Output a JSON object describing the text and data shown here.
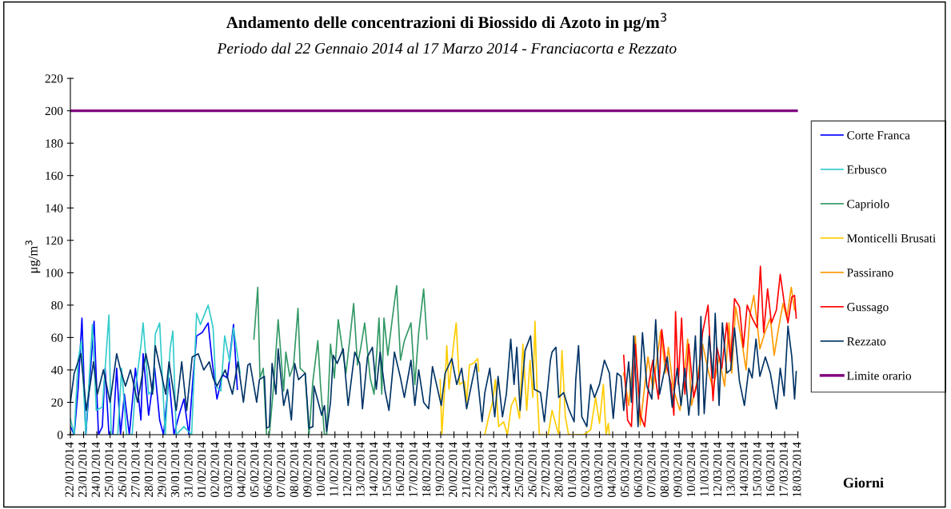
{
  "chart_data": {
    "type": "line",
    "title": "Andamento delle concentrazioni di Biossido di Azoto in μg/m$^{3}$",
    "subtitle": "Periodo dal 22 Gennaio 2014 al 17 Marzo 2014 - Franciacorta e Rezzato",
    "ylabel": "μg/m$^{3}$",
    "xlabel": "Giorni",
    "xlim": [
      "2014-01-22",
      "2014-03-18"
    ],
    "xticks": [
      {
        "value": "2014-01-22",
        "label": "22/01/2014"
      },
      {
        "value": "2014-01-23",
        "label": "23/01/2014"
      },
      {
        "value": "2014-01-24",
        "label": "24/01/2014"
      },
      {
        "value": "2014-01-25",
        "label": "25/01/2014"
      },
      {
        "value": "2014-01-26",
        "label": "26/01/2014"
      },
      {
        "value": "2014-01-27",
        "label": "27/01/2014"
      },
      {
        "value": "2014-01-28",
        "label": "28/01/2014"
      },
      {
        "value": "2014-01-29",
        "label": "29/01/2014"
      },
      {
        "value": "2014-01-30",
        "label": "30/01/2014"
      },
      {
        "value": "2014-01-31",
        "label": "31/01/2014"
      },
      {
        "value": "2014-02-01",
        "label": "01/02/2014"
      },
      {
        "value": "2014-02-02",
        "label": "02/02/2014"
      },
      {
        "value": "2014-02-03",
        "label": "03/02/2014"
      },
      {
        "value": "2014-02-04",
        "label": "04/02/2014"
      },
      {
        "value": "2014-02-05",
        "label": "05/02/2014"
      },
      {
        "value": "2014-02-06",
        "label": "06/02/2014"
      },
      {
        "value": "2014-02-07",
        "label": "07/02/2014"
      },
      {
        "value": "2014-02-08",
        "label": "08/02/2014"
      },
      {
        "value": "2014-02-09",
        "label": "09/02/2014"
      },
      {
        "value": "2014-02-10",
        "label": "10/02/2014"
      },
      {
        "value": "2014-02-11",
        "label": "11/02/2014"
      },
      {
        "value": "2014-02-12",
        "label": "12/02/2014"
      },
      {
        "value": "2014-02-13",
        "label": "13/02/2014"
      },
      {
        "value": "2014-02-14",
        "label": "14/02/2014"
      },
      {
        "value": "2014-02-15",
        "label": "15/02/2014"
      },
      {
        "value": "2014-02-16",
        "label": "16/02/2014"
      },
      {
        "value": "2014-02-17",
        "label": "17/02/2014"
      },
      {
        "value": "2014-02-18",
        "label": "18/02/2014"
      },
      {
        "value": "2014-02-19",
        "label": "19/02/2014"
      },
      {
        "value": "2014-02-20",
        "label": "20/02/2014"
      },
      {
        "value": "2014-02-21",
        "label": "21/02/2014"
      },
      {
        "value": "2014-02-22",
        "label": "22/02/2014"
      },
      {
        "value": "2014-02-23",
        "label": "23/02/2014"
      },
      {
        "value": "2014-02-24",
        "label": "24/02/2014"
      },
      {
        "value": "2014-02-25",
        "label": "25/02/2014"
      },
      {
        "value": "2014-02-26",
        "label": "26/02/2014"
      },
      {
        "value": "2014-02-27",
        "label": "27/02/2014"
      },
      {
        "value": "2014-02-28",
        "label": "28/02/2014"
      },
      {
        "value": "2014-03-01",
        "label": "01/03/2014"
      },
      {
        "value": "2014-03-02",
        "label": "02/03/2014"
      },
      {
        "value": "2014-03-03",
        "label": "03/03/2014"
      },
      {
        "value": "2014-03-04",
        "label": "04/03/2014"
      },
      {
        "value": "2014-03-05",
        "label": "05/03/2014"
      },
      {
        "value": "2014-03-06",
        "label": "06/03/2014"
      },
      {
        "value": "2014-03-07",
        "label": "07/03/2014"
      },
      {
        "value": "2014-03-08",
        "label": "08/03/2014"
      },
      {
        "value": "2014-03-09",
        "label": "09/03/2014"
      },
      {
        "value": "2014-03-10",
        "label": "10/03/2014"
      },
      {
        "value": "2014-03-11",
        "label": "11/03/2014"
      },
      {
        "value": "2014-03-12",
        "label": "12/03/2014"
      },
      {
        "value": "2014-03-13",
        "label": "13/03/2014"
      },
      {
        "value": "2014-03-14",
        "label": "14/03/2014"
      },
      {
        "value": "2014-03-15",
        "label": "15/03/2014"
      },
      {
        "value": "2014-03-16",
        "label": "16/03/2014"
      },
      {
        "value": "2014-03-17",
        "label": "17/03/2014"
      },
      {
        "value": "2014-03-18",
        "label": "18/03/2014"
      }
    ],
    "ylim": [
      0,
      220
    ],
    "yticks": [
      0,
      20,
      40,
      60,
      80,
      100,
      120,
      140,
      160,
      180,
      200,
      220
    ],
    "grid": false,
    "legend": "right",
    "marker": "none",
    "line_style": "solid",
    "series": [
      {
        "name": "Corte Franca",
        "color": "#0000ff",
        "x": [
          "2014-01-22T00:00",
          "2014-01-22T07:00",
          "2014-01-22T14:00",
          "2014-01-22T21:00",
          "2014-01-23T04:00",
          "2014-01-23T11:00",
          "2014-01-23T19:00",
          "2014-01-24T03:00",
          "2014-01-24T10:00",
          "2014-01-24T15:00",
          "2014-01-24T22:00",
          "2014-01-25T05:00",
          "2014-01-25T12:00",
          "2014-01-25T19:00",
          "2014-01-26T02:00",
          "2014-01-26T11:00",
          "2014-01-26T22:00",
          "2014-01-27T08:00",
          "2014-01-27T12:00",
          "2014-01-27T22:00",
          "2014-01-28T09:00",
          "2014-01-28T18:00",
          "2014-01-29T01:00",
          "2014-01-29T11:00",
          "2014-01-29T20:00",
          "2014-01-30T05:00",
          "2014-01-30T14:00",
          "2014-01-30T23:00",
          "2014-01-31T06:00",
          "2014-01-31T13:00",
          "2014-01-31T23:00",
          "2014-02-01T10:00",
          "2014-02-01T17:00",
          "2014-02-02T02:00",
          "2014-02-02T12:00",
          "2014-02-02T21:00",
          "2014-02-03T08:00",
          "2014-02-03T15:00"
        ],
        "values": [
          5,
          0,
          28,
          72,
          0,
          33,
          70,
          0,
          5,
          41,
          0,
          0,
          41,
          0,
          25,
          0,
          41,
          9,
          50,
          12,
          41,
          9,
          0,
          35,
          0,
          12,
          22,
          0,
          33,
          61,
          63,
          69,
          46,
          22,
          37,
          35,
          68,
          28
        ]
      },
      {
        "name": "Erbusco",
        "color": "#33cccc",
        "x": [
          "2014-01-22T00:00",
          "2014-01-22T07:00",
          "2014-01-22T14:00",
          "2014-01-22T20:00",
          "2014-01-23T04:00",
          "2014-01-23T16:00",
          "2014-01-23T23:00",
          "2014-01-24T10:00",
          "2014-01-24T17:00",
          "2014-01-24T22:00",
          "2014-01-25T02:00",
          "2014-01-25T14:00",
          "2014-01-25T21:00",
          "2014-01-26T06:00",
          "2014-01-26T16:00",
          "2014-01-26T22:00",
          "2014-01-27T08:00",
          "2014-01-27T12:00",
          "2014-01-27T22:00",
          "2014-01-28T07:00",
          "2014-01-28T10:00",
          "2014-01-28T18:00",
          "2014-01-29T04:00",
          "2014-01-29T13:00",
          "2014-01-29T18:00",
          "2014-01-30T00:00",
          "2014-01-30T14:00",
          "2014-01-31T04:00",
          "2014-01-31T13:00",
          "2014-01-31T20:00",
          "2014-02-01T10:00",
          "2014-02-01T19:00",
          "2014-02-02T00:00",
          "2014-02-02T09:00",
          "2014-02-02T16:00",
          "2014-02-03T01:00",
          "2014-02-03T08:00",
          "2014-02-03T20:00"
        ],
        "values": [
          10,
          0,
          46,
          58,
          0,
          68,
          15,
          17,
          50,
          74,
          0,
          0,
          41,
          0,
          0,
          28,
          55,
          69,
          25,
          28,
          62,
          69,
          0,
          53,
          64,
          0,
          5,
          0,
          75,
          68,
          80,
          66,
          30,
          27,
          61,
          45,
          66,
          38
        ]
      },
      {
        "name": "Capriolo",
        "color": "#339966",
        "x": [
          "2014-02-04T21:00",
          "2014-02-05T04:00",
          "2014-02-05T08:00",
          "2014-02-05T14:00",
          "2014-02-05T20:00",
          "2014-02-06T01:00",
          "2014-02-06T08:00",
          "2014-02-06T17:00",
          "2014-02-07T03:00",
          "2014-02-07T07:00",
          "2014-02-07T14:00",
          "2014-02-07T21:00",
          "2014-02-08T05:00",
          "2014-02-08T09:00",
          "2014-02-08T18:00",
          "2014-02-09T01:00",
          "2014-02-09T08:00",
          "2014-02-09T17:00",
          "2014-02-09T22:00",
          "2014-02-10T05:00",
          "2014-02-10T09:00",
          "2014-02-10T16:00",
          "2014-02-10T23:00",
          "2014-02-11T06:00",
          "2014-02-11T13:00",
          "2014-02-11T20:00",
          "2014-02-12T03:00",
          "2014-02-12T10:00",
          "2014-02-12T17:00",
          "2014-02-12T23:00",
          "2014-02-13T06:00",
          "2014-02-13T16:00",
          "2014-02-13T23:00",
          "2014-02-14T08:00",
          "2014-02-14T13:00",
          "2014-02-14T17:00",
          "2014-02-15T00:00",
          "2014-02-15T09:00",
          "2014-02-15T16:00",
          "2014-02-15T23:00",
          "2014-02-16T06:00",
          "2014-02-16T18:00",
          "2014-02-17T01:00",
          "2014-02-17T08:00",
          "2014-02-17T17:00",
          "2014-02-17T23:00"
        ],
        "values": [
          59,
          91,
          35,
          41,
          0,
          0,
          27,
          71,
          27,
          51,
          36,
          43,
          78,
          41,
          38,
          0,
          33,
          58,
          30,
          0,
          0,
          56,
          35,
          71,
          54,
          38,
          59,
          81,
          43,
          54,
          69,
          35,
          25,
          72,
          25,
          72,
          49,
          74,
          92,
          46,
          58,
          69,
          31,
          63,
          90,
          59
        ]
      },
      {
        "name": "Monticelli Brusati",
        "color": "#ffcc00",
        "x": [
          "2014-02-18T23:00",
          "2014-02-19T02:00",
          "2014-02-19T08:00",
          "2014-02-19T11:00",
          "2014-02-19T15:00",
          "2014-02-19T22:00",
          "2014-02-20T04:00",
          "2014-02-20T10:00",
          "2014-02-20T19:00",
          "2014-02-20T23:00",
          "2014-02-21T04:00",
          "2014-02-21T11:00",
          "2014-02-21T19:00",
          "2014-02-21T21:00",
          "2014-02-22T02:00",
          "2014-02-22T08:00",
          "2014-02-22T15:00",
          "2014-02-22T22:00",
          "2014-02-23T03:00",
          "2014-02-23T09:00",
          "2014-02-23T18:00",
          "2014-02-24T01:00",
          "2014-02-24T08:00",
          "2014-02-24T15:00",
          "2014-02-24T23:00",
          "2014-02-25T05:00",
          "2014-02-25T12:00",
          "2014-02-25T18:00",
          "2014-02-25T23:00",
          "2014-02-26T03:00",
          "2014-02-26T07:00",
          "2014-02-26T11:00",
          "2014-02-27T03:00",
          "2014-02-27T10:00",
          "2014-02-27T22:00",
          "2014-02-28T04:00",
          "2014-02-28T10:00",
          "2014-02-28T16:00",
          "2014-03-01T20:00",
          "2014-03-02T08:00",
          "2014-03-02T17:00",
          "2014-03-03T00:00",
          "2014-03-03T07:00",
          "2014-03-03T12:00",
          "2014-03-03T16:00",
          "2014-03-03T18:00"
        ],
        "values": [
          34,
          0,
          34,
          55,
          28,
          52,
          69,
          31,
          33,
          20,
          43,
          44,
          47,
          39,
          null,
          0,
          11,
          20,
          34,
          5,
          8,
          0,
          18,
          23,
          10,
          56,
          15,
          46,
          23,
          70,
          26,
          0,
          0,
          15,
          0,
          52,
          11,
          0,
          0,
          3,
          23,
          7,
          31,
          0,
          7,
          0
        ]
      },
      {
        "name": "Passirano",
        "color": "#ff9900",
        "x": [
          "2014-03-04T20:00",
          "2014-03-05T05:00",
          "2014-03-05T17:00",
          "2014-03-06T02:00",
          "2014-03-06T16:00",
          "2014-03-07T01:00",
          "2014-03-07T15:00",
          "2014-03-08T00:00",
          "2014-03-08T05:00",
          "2014-03-08T14:00",
          "2014-03-09T02:00",
          "2014-03-09T09:00",
          "2014-03-09T16:00",
          "2014-03-09T23:00",
          "2014-03-10T08:00",
          "2014-03-10T19:00",
          "2014-03-11T05:00",
          "2014-03-11T14:00",
          "2014-03-12T01:00",
          "2014-03-12T11:00",
          "2014-03-12T19:00",
          "2014-03-13T00:00",
          "2014-03-13T07:00",
          "2014-03-13T19:00",
          "2014-03-14T02:00",
          "2014-03-14T09:00",
          "2014-03-14T16:00",
          "2014-03-14T23:00",
          "2014-03-15T03:00",
          "2014-03-15T13:00",
          "2014-03-15T22:00",
          "2014-03-16T05:00",
          "2014-03-16T12:00",
          "2014-03-16T21:00",
          "2014-03-17T04:00",
          "2014-03-17T12:00",
          "2014-03-17T18:00"
        ],
        "values": [
          38,
          18,
          61,
          6,
          48,
          28,
          64,
          38,
          54,
          28,
          15,
          33,
          59,
          18,
          31,
          56,
          40,
          28,
          48,
          30,
          69,
          38,
          79,
          56,
          40,
          74,
          86,
          66,
          53,
          64,
          72,
          49,
          64,
          81,
          72,
          91,
          77
        ]
      },
      {
        "name": "Gussago",
        "color": "#ff0000",
        "x": [
          "2014-03-04T20:00",
          "2014-03-05T03:00",
          "2014-03-05T10:00",
          "2014-03-05T17:00",
          "2014-03-06T02:00",
          "2014-03-06T10:00",
          "2014-03-06T18:00",
          "2014-03-07T01:00",
          "2014-03-07T11:00",
          "2014-03-07T17:00",
          "2014-03-08T00:00",
          "2014-03-08T10:00",
          "2014-03-08T15:00",
          "2014-03-08T18:00",
          "2014-03-08T23:00",
          "2014-03-09T05:00",
          "2014-03-09T11:00",
          "2014-03-09T18:00",
          "2014-03-10T03:00",
          "2014-03-10T12:00",
          "2014-03-10T19:00",
          "2014-03-11T05:00",
          "2014-03-11T14:00",
          "2014-03-11T21:00",
          "2014-03-12T06:00",
          "2014-03-12T15:00",
          "2014-03-12T22:00",
          "2014-03-13T05:00",
          "2014-03-13T14:00",
          "2014-03-13T21:00",
          "2014-03-14T04:00",
          "2014-03-14T13:00",
          "2014-03-14T22:00",
          "2014-03-15T04:00",
          "2014-03-15T10:00",
          "2014-03-15T17:00",
          "2014-03-16T00:00",
          "2014-03-16T09:00",
          "2014-03-16T16:00",
          "2014-03-16T23:00",
          "2014-03-17T06:00",
          "2014-03-17T13:00",
          "2014-03-17T18:00",
          "2014-03-17T21:00"
        ],
        "values": [
          49,
          9,
          5,
          56,
          12,
          5,
          33,
          46,
          22,
          65,
          45,
          31,
          12,
          76,
          31,
          72,
          25,
          56,
          23,
          36,
          63,
          80,
          21,
          54,
          41,
          69,
          45,
          84,
          79,
          54,
          80,
          72,
          66,
          104,
          63,
          90,
          69,
          77,
          99,
          82,
          69,
          85,
          86,
          72
        ]
      },
      {
        "name": "Rezzato",
        "color": "#003366",
        "x": [
          "2014-01-22T00:00",
          "2014-01-22T07:00",
          "2014-01-22T19:00",
          "2014-01-23T05:00",
          "2014-01-23T18:00",
          "2014-01-24T01:00",
          "2014-01-24T12:00",
          "2014-01-25T00:00",
          "2014-01-25T12:00",
          "2014-01-25T19:00",
          "2014-01-26T04:00",
          "2014-01-26T13:00",
          "2014-01-27T02:00",
          "2014-01-27T17:00",
          "2014-01-27T23:00",
          "2014-01-28T05:00",
          "2014-01-28T10:00",
          "2014-01-29T05:00",
          "2014-01-29T11:00",
          "2014-01-30T00:00",
          "2014-01-30T10:00",
          "2014-01-30T19:00",
          "2014-01-31T05:00",
          "2014-01-31T16:00",
          "2014-02-01T02:00",
          "2014-02-01T12:00",
          "2014-02-01T19:00",
          "2014-02-02T02:00",
          "2014-02-02T17:00",
          "2014-02-03T06:00",
          "2014-02-03T16:00",
          "2014-02-04T02:00",
          "2014-02-04T10:00",
          "2014-02-04T14:00",
          "2014-02-05T02:00",
          "2014-02-05T07:00",
          "2014-02-05T16:00",
          "2014-02-05T20:00",
          "2014-02-06T01:00",
          "2014-02-06T06:00",
          "2014-02-06T13:00",
          "2014-02-06T17:00",
          "2014-02-07T03:00",
          "2014-02-07T10:00",
          "2014-02-07T17:00",
          "2014-02-07T23:00",
          "2014-02-08T06:00",
          "2014-02-08T18:00",
          "2014-02-09T01:00",
          "2014-02-09T08:00",
          "2014-02-09T10:00",
          "2014-02-10T00:00",
          "2014-02-10T05:00",
          "2014-02-10T09:00",
          "2014-02-10T16:00",
          "2014-02-10T21:00",
          "2014-02-11T04:00",
          "2014-02-11T15:00",
          "2014-02-12T00:00",
          "2014-02-12T12:00",
          "2014-02-12T21:00",
          "2014-02-13T02:00",
          "2014-02-13T11:00",
          "2014-02-13T20:00",
          "2014-02-14T03:00",
          "2014-02-14T10:00",
          "2014-02-14T19:00",
          "2014-02-15T02:00",
          "2014-02-15T12:00",
          "2014-02-15T23:00",
          "2014-02-16T06:00",
          "2014-02-16T18:00",
          "2014-02-17T01:00",
          "2014-02-17T08:00",
          "2014-02-17T17:00",
          "2014-02-18T02:00",
          "2014-02-18T09:00",
          "2014-02-19T01:00",
          "2014-02-19T08:00",
          "2014-02-19T20:00",
          "2014-02-20T05:00",
          "2014-02-20T14:00",
          "2014-02-20T23:00",
          "2014-02-21T09:00",
          "2014-02-21T16:00",
          "2014-02-22T03:00",
          "2014-02-22T08:00",
          "2014-02-22T17:00",
          "2014-02-23T02:00",
          "2014-02-23T08:00",
          "2014-02-23T16:00",
          "2014-02-23T23:00",
          "2014-02-24T07:00",
          "2014-02-24T13:00",
          "2014-02-24T18:00",
          "2014-02-25T00:00",
          "2014-02-25T09:00",
          "2014-02-25T19:00",
          "2014-02-26T02:00",
          "2014-02-26T13:00",
          "2014-02-26T20:00",
          "2014-02-27T07:00",
          "2014-02-27T10:00",
          "2014-02-27T17:00",
          "2014-02-27T22:00",
          "2014-02-28T07:00",
          "2014-02-28T16:00",
          "2014-03-01T02:00",
          "2014-03-01T05:00",
          "2014-03-01T10:00",
          "2014-03-01T16:00",
          "2014-03-02T01:00",
          "2014-03-02T08:00",
          "2014-03-02T15:00",
          "2014-03-03T00:00",
          "2014-03-03T09:00",
          "2014-03-03T18:00",
          "2014-03-04T01:00",
          "2014-03-04T08:00",
          "2014-03-04T15:00",
          "2014-03-04T20:00",
          "2014-03-05T05:00",
          "2014-03-05T10:00",
          "2014-03-05T14:00",
          "2014-03-05T22:00",
          "2014-03-06T06:00",
          "2014-03-06T14:00",
          "2014-03-06T23:00",
          "2014-03-07T06:00",
          "2014-03-07T13:00",
          "2014-03-08T03:00",
          "2014-03-08T12:00",
          "2014-03-08T21:00",
          "2014-03-09T04:00",
          "2014-03-09T11:00",
          "2014-03-09T18:00",
          "2014-03-10T01:00",
          "2014-03-10T06:00",
          "2014-03-10T12:00",
          "2014-03-10T16:00",
          "2014-03-10T22:00",
          "2014-03-11T07:00",
          "2014-03-11T14:00",
          "2014-03-11T18:00",
          "2014-03-12T01:00",
          "2014-03-12T07:00",
          "2014-03-12T15:00",
          "2014-03-12T22:00",
          "2014-03-13T05:00",
          "2014-03-13T14:00",
          "2014-03-13T23:00",
          "2014-03-14T07:00",
          "2014-03-14T13:00",
          "2014-03-14T20:00",
          "2014-03-15T03:00",
          "2014-03-15T13:00",
          "2014-03-15T22:00",
          "2014-03-16T09:00",
          "2014-03-16T16:00",
          "2014-03-16T23:00",
          "2014-03-17T06:00",
          "2014-03-17T13:00",
          "2014-03-17T18:00",
          "2014-03-17T21:00"
        ],
        "values": [
          20,
          38,
          50,
          15,
          45,
          25,
          40,
          20,
          50,
          40,
          30,
          40,
          20,
          50,
          40,
          25,
          55,
          25,
          45,
          15,
          45,
          15,
          48,
          50,
          40,
          45,
          35,
          30,
          40,
          25,
          45,
          20,
          43,
          44,
          20,
          34,
          36,
          4,
          5,
          44,
          25,
          53,
          18,
          28,
          9,
          44,
          34,
          38,
          4,
          5,
          30,
          12,
          18,
          2,
          20,
          49,
          44,
          53,
          18,
          51,
          44,
          16,
          48,
          54,
          28,
          51,
          27,
          15,
          51,
          35,
          23,
          46,
          18,
          40,
          20,
          16,
          42,
          18,
          38,
          47,
          31,
          41,
          16,
          33,
          44,
          8,
          26,
          41,
          11,
          36,
          11,
          25,
          59,
          31,
          54,
          15,
          52,
          61,
          28,
          26,
          8,
          46,
          51,
          54,
          23,
          26,
          16,
          8,
          34,
          55,
          11,
          5,
          31,
          23,
          31,
          46,
          38,
          10,
          38,
          36,
          15,
          45,
          20,
          61,
          5,
          63,
          30,
          22,
          71,
          25,
          48,
          17,
          41,
          18,
          41,
          12,
          33,
          61,
          12,
          73,
          13,
          61,
          35,
          75,
          18,
          69,
          38,
          40,
          66,
          33,
          18,
          41,
          35,
          59,
          36,
          48,
          38,
          16,
          41,
          24,
          67,
          48,
          22,
          39
        ]
      }
    ],
    "ref_lines": [
      {
        "axis": "y",
        "value": 200,
        "label": "Limite orario",
        "color": "#800080"
      }
    ]
  }
}
